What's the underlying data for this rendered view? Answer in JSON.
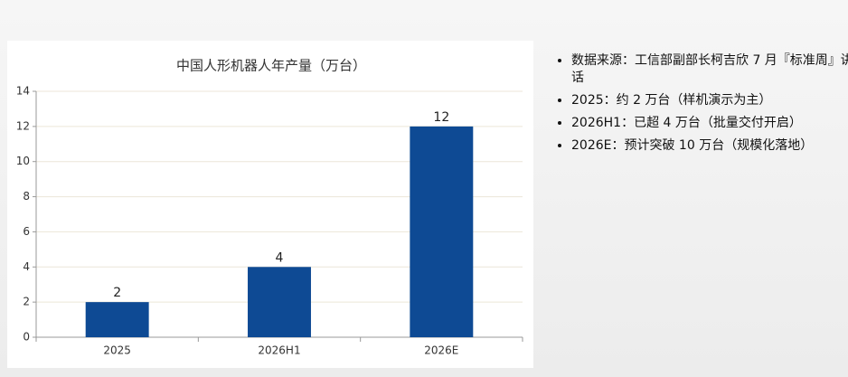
{
  "chart_data": {
    "type": "bar",
    "title": "中国人形机器人年产量（万台）",
    "categories": [
      "2025",
      "2026H1",
      "2026E"
    ],
    "values": [
      2,
      4,
      12
    ],
    "color": "#0e4a94",
    "ylim": [
      0,
      14
    ],
    "yticks": [
      0,
      2,
      4,
      6,
      8,
      10,
      12,
      14
    ],
    "grid": true
  },
  "notes": [
    "数据来源：工信部副部长柯吉欣 7 月『标准周』讲话",
    "2025：约 2 万台（样机演示为主）",
    "2026H1：已超 4 万台（批量交付开启）",
    "2026E：预计突破 10 万台（规模化落地）"
  ]
}
